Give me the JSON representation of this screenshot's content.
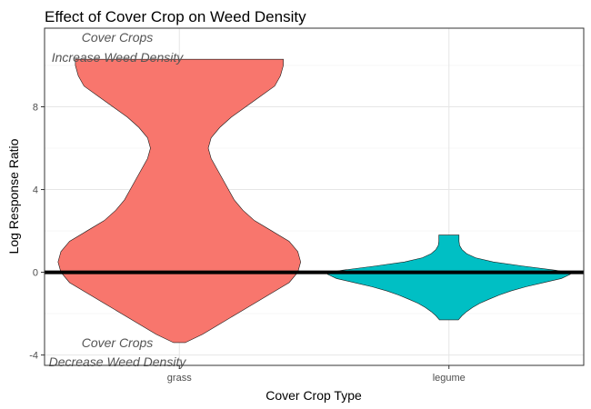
{
  "chart_data": {
    "type": "violin",
    "title": "Effect of Cover Crop on Weed Density",
    "xlabel": "Cover Crop Type",
    "ylabel": "Log Response Ratio",
    "categories": [
      "grass",
      "legume"
    ],
    "ylim": [
      -4.5,
      11.8
    ],
    "yticks": [
      -4,
      0,
      4,
      8
    ],
    "grid": true,
    "reference_line_y": 0,
    "annotations": {
      "top": [
        "Cover Crops",
        "Increase Weed Density"
      ],
      "bottom": [
        "Cover Crops",
        "Decrease Weed Density"
      ]
    },
    "series": [
      {
        "category": "grass",
        "color": "#F8766D",
        "range": [
          -3.4,
          10.3
        ],
        "density": [
          [
            -3.4,
            0.02
          ],
          [
            -3.0,
            0.08
          ],
          [
            -2.5,
            0.14
          ],
          [
            -2.0,
            0.2
          ],
          [
            -1.5,
            0.26
          ],
          [
            -1.0,
            0.32
          ],
          [
            -0.5,
            0.38
          ],
          [
            0.0,
            0.41
          ],
          [
            0.5,
            0.42
          ],
          [
            1.0,
            0.41
          ],
          [
            1.5,
            0.38
          ],
          [
            2.0,
            0.32
          ],
          [
            2.5,
            0.26
          ],
          [
            3.0,
            0.22
          ],
          [
            3.5,
            0.19
          ],
          [
            4.0,
            0.17
          ],
          [
            4.5,
            0.15
          ],
          [
            5.0,
            0.13
          ],
          [
            5.5,
            0.11
          ],
          [
            6.0,
            0.1
          ],
          [
            6.5,
            0.11
          ],
          [
            7.0,
            0.14
          ],
          [
            7.5,
            0.18
          ],
          [
            8.0,
            0.23
          ],
          [
            8.5,
            0.28
          ],
          [
            9.0,
            0.33
          ],
          [
            9.5,
            0.35
          ],
          [
            10.0,
            0.36
          ],
          [
            10.3,
            0.36
          ]
        ]
      },
      {
        "category": "legume",
        "color": "#00BFC4",
        "range": [
          -2.3,
          1.8
        ],
        "density": [
          [
            -2.3,
            0.16
          ],
          [
            -2.1,
            0.22
          ],
          [
            -1.9,
            0.3
          ],
          [
            -1.7,
            0.4
          ],
          [
            -1.5,
            0.52
          ],
          [
            -1.3,
            0.68
          ],
          [
            -1.1,
            0.85
          ],
          [
            -0.9,
            1.05
          ],
          [
            -0.7,
            1.3
          ],
          [
            -0.5,
            1.6
          ],
          [
            -0.3,
            1.9
          ],
          [
            -0.1,
            2.05
          ],
          [
            0.0,
            2.0
          ],
          [
            0.1,
            1.8
          ],
          [
            0.3,
            1.25
          ],
          [
            0.5,
            0.75
          ],
          [
            0.7,
            0.45
          ],
          [
            0.9,
            0.3
          ],
          [
            1.1,
            0.22
          ],
          [
            1.3,
            0.18
          ],
          [
            1.5,
            0.17
          ],
          [
            1.7,
            0.17
          ],
          [
            1.8,
            0.17
          ]
        ]
      }
    ]
  }
}
